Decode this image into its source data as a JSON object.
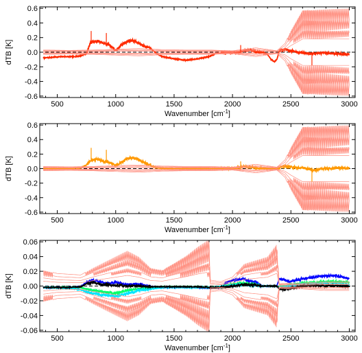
{
  "chart_data": [
    {
      "type": "line",
      "xlabel": "Wavenumber [cm",
      "xlabel_sup": "-1",
      "xlabel_end": "]",
      "ylabel": "dTB [K]",
      "xlim": [
        350,
        3050
      ],
      "ylim": [
        -0.62,
        0.62
      ],
      "xticks": [
        500,
        1000,
        1500,
        2000,
        2500,
        3000
      ],
      "yticks": [
        -0.6,
        -0.4,
        -0.2,
        0.0,
        0.2,
        0.4,
        0.6
      ],
      "ytick_labels": [
        "-0.6",
        "-0.4",
        "-0.2",
        "0.0",
        "0.2",
        "0.4",
        "0.6"
      ],
      "zero_line": true,
      "series": [
        {
          "color": "#ff2a00",
          "role": "difference",
          "x": [
            380,
            450,
            550,
            650,
            700,
            750,
            780,
            800,
            850,
            900,
            950,
            1000,
            1050,
            1100,
            1150,
            1200,
            1250,
            1300,
            1350,
            1400,
            1500,
            1600,
            1700,
            1800,
            1850,
            1900,
            2000,
            2050,
            2100,
            2150,
            2200,
            2250,
            2300,
            2330,
            2360,
            2380,
            2400,
            2450,
            2500,
            2600,
            2700,
            2800,
            2900,
            3000
          ],
          "y": [
            -0.08,
            -0.07,
            -0.06,
            -0.06,
            -0.05,
            -0.02,
            0.12,
            0.14,
            0.15,
            0.12,
            0.1,
            0.02,
            0.1,
            0.15,
            0.16,
            0.12,
            0.08,
            0.05,
            -0.02,
            -0.06,
            -0.09,
            -0.11,
            -0.09,
            -0.06,
            -0.02,
            -0.01,
            -0.01,
            0.0,
            0.02,
            0.03,
            0.01,
            0.0,
            -0.03,
            -0.1,
            -0.13,
            -0.1,
            0.02,
            0.04,
            0.02,
            -0.01,
            -0.02,
            -0.01,
            -0.02,
            -0.03
          ]
        },
        {
          "color": "#ff8f80",
          "role": "uncertainty-envelope",
          "x": [
            380,
            600,
            800,
            1000,
            1200,
            1400,
            1600,
            1800,
            2000,
            2200,
            2380,
            2450,
            2500,
            2550,
            2600,
            2700,
            2800,
            2900,
            3000
          ],
          "y": [
            0.03,
            0.025,
            0.03,
            0.04,
            0.05,
            0.035,
            0.03,
            0.03,
            0.02,
            0.06,
            0.02,
            0.12,
            0.3,
            0.45,
            0.6,
            0.6,
            0.6,
            0.6,
            0.6
          ]
        }
      ]
    },
    {
      "type": "line",
      "xlabel": "Wavenumber [cm",
      "xlabel_sup": "-1",
      "xlabel_end": "]",
      "ylabel": "dTB [K]",
      "xlim": [
        350,
        3050
      ],
      "ylim": [
        -0.62,
        0.62
      ],
      "xticks": [
        500,
        1000,
        1500,
        2000,
        2500,
        3000
      ],
      "yticks": [
        -0.6,
        -0.4,
        -0.2,
        0.0,
        0.2,
        0.4,
        0.6
      ],
      "ytick_labels": [
        "-0.6",
        "-0.4",
        "-0.2",
        "0.0",
        "0.2",
        "0.4",
        "0.6"
      ],
      "zero_line": true,
      "series": [
        {
          "color": "#ff9900",
          "role": "difference",
          "x": [
            380,
            500,
            600,
            700,
            750,
            780,
            800,
            850,
            900,
            950,
            1000,
            1050,
            1100,
            1150,
            1200,
            1250,
            1300,
            1350,
            1500,
            1700,
            1800,
            1850,
            1950,
            2050,
            2100,
            2150,
            2200,
            2300,
            2380,
            2420,
            2450,
            2500,
            2600,
            2700,
            2800,
            2900,
            3000
          ],
          "y": [
            0.0,
            0.0,
            0.0,
            0.01,
            0.05,
            0.1,
            0.12,
            0.13,
            0.1,
            0.09,
            0.04,
            0.09,
            0.14,
            0.15,
            0.12,
            0.08,
            0.04,
            0.01,
            0.0,
            0.0,
            0.0,
            0.0,
            0.0,
            0.01,
            0.03,
            0.02,
            0.01,
            0.0,
            0.0,
            0.02,
            0.03,
            0.02,
            0.01,
            -0.02,
            0.0,
            0.01,
            0.0
          ]
        },
        {
          "color": "#ff8f80",
          "role": "uncertainty-envelope",
          "x": [
            380,
            600,
            800,
            1000,
            1200,
            1400,
            1600,
            1800,
            2000,
            2200,
            2380,
            2450,
            2500,
            2550,
            2600,
            2700,
            2800,
            2900,
            3000
          ],
          "y": [
            0.03,
            0.025,
            0.03,
            0.04,
            0.05,
            0.035,
            0.03,
            0.03,
            0.02,
            0.06,
            0.02,
            0.12,
            0.3,
            0.45,
            0.6,
            0.6,
            0.6,
            0.6,
            0.6
          ]
        }
      ]
    },
    {
      "type": "line",
      "xlabel": "Wavenumber [cm",
      "xlabel_sup": "-1",
      "xlabel_end": "]",
      "ylabel": "dTB [K]",
      "xlim": [
        350,
        3050
      ],
      "ylim": [
        -0.062,
        0.062
      ],
      "xticks": [
        500,
        1000,
        1500,
        2000,
        2500,
        3000
      ],
      "yticks": [
        -0.06,
        -0.04,
        -0.02,
        0.0,
        0.02,
        0.04,
        0.06
      ],
      "ytick_labels": [
        "-0.06",
        "-0.04",
        "-0.02",
        "0.00",
        "0.02",
        "0.04",
        "0.06"
      ],
      "zero_line": true,
      "series": [
        {
          "color": "#0000ff",
          "role": "difference",
          "x": [
            380,
            600,
            700,
            750,
            800,
            900,
            1000,
            1100,
            1200,
            1300,
            1400,
            1500,
            1700,
            1800,
            1850,
            1900,
            1950,
            2000,
            2100,
            2150,
            2200,
            2250,
            2380,
            2400,
            2450,
            2500,
            2600,
            2700,
            2800,
            2900,
            3000
          ],
          "y": [
            -0.002,
            -0.002,
            -0.001,
            0.005,
            0.008,
            0.004,
            0.005,
            0.002,
            0.003,
            -0.001,
            -0.002,
            -0.002,
            -0.002,
            -0.003,
            -0.002,
            -0.002,
            0.005,
            0.008,
            0.01,
            0.006,
            0.006,
            0.0,
            0.0,
            0.01,
            0.008,
            0.006,
            0.01,
            0.012,
            0.014,
            0.014,
            0.01
          ]
        },
        {
          "color": "#00ff66",
          "role": "difference",
          "x": [
            380,
            600,
            700,
            750,
            800,
            900,
            1000,
            1100,
            1200,
            1300,
            1400,
            1700,
            1800,
            1900,
            2000,
            2100,
            2200,
            2250,
            2380,
            2400,
            2500,
            2600,
            2700,
            2800,
            2900,
            3000
          ],
          "y": [
            -0.002,
            -0.002,
            -0.002,
            -0.004,
            -0.006,
            -0.008,
            -0.01,
            -0.006,
            -0.004,
            -0.002,
            -0.001,
            -0.001,
            -0.002,
            -0.001,
            0.003,
            0.004,
            0.002,
            0.0,
            0.0,
            -0.002,
            0.002,
            0.004,
            0.005,
            0.006,
            0.006,
            0.005
          ]
        },
        {
          "color": "#00e5ff",
          "role": "difference",
          "x": [
            380,
            600,
            700,
            750,
            800,
            900,
            1000,
            1050,
            1100,
            1200,
            1300,
            1400,
            1700,
            1800,
            1900,
            2000,
            2100,
            2200,
            2250,
            2380,
            2400,
            2500,
            2600,
            2700,
            2800,
            2900,
            3000
          ],
          "y": [
            -0.002,
            -0.003,
            -0.005,
            -0.008,
            -0.01,
            -0.012,
            -0.014,
            -0.012,
            -0.01,
            -0.006,
            -0.004,
            -0.002,
            -0.002,
            -0.002,
            -0.001,
            0.001,
            0.002,
            0.001,
            0.0,
            0.0,
            -0.003,
            0.0,
            0.002,
            0.003,
            0.003,
            0.002,
            0.002
          ]
        },
        {
          "color": "#000000",
          "role": "difference",
          "x": [
            380,
            600,
            700,
            750,
            800,
            900,
            1000,
            1100,
            1200,
            1300,
            1400,
            1700,
            1800,
            1900,
            2000,
            2100,
            2200,
            2250,
            2380,
            2400,
            2450,
            2500,
            2600,
            2700,
            2800,
            2900,
            3000
          ],
          "y": [
            -0.002,
            -0.002,
            -0.001,
            0.003,
            0.005,
            0.002,
            0.001,
            0.0,
            0.0,
            -0.001,
            -0.001,
            -0.001,
            -0.002,
            -0.002,
            0.0,
            0.002,
            0.001,
            0.0,
            0.0,
            -0.004,
            -0.005,
            -0.003,
            0.0,
            0.001,
            0.0,
            0.0,
            0.0
          ]
        },
        {
          "color": "#ff8f80",
          "role": "uncertainty-envelope",
          "x": [
            380,
            500,
            700,
            800,
            900,
            1000,
            1100,
            1200,
            1300,
            1400,
            1500,
            1600,
            1700,
            1800,
            1810,
            1900,
            2000,
            2100,
            2200,
            2300,
            2380,
            2400,
            2500,
            2600,
            2700,
            2800,
            2900,
            3000
          ],
          "y": [
            0.022,
            0.017,
            0.015,
            0.024,
            0.032,
            0.04,
            0.048,
            0.04,
            0.025,
            0.022,
            0.032,
            0.042,
            0.054,
            0.064,
            0.008,
            0.006,
            0.012,
            0.03,
            0.035,
            0.04,
            0.058,
            0.003,
            0.004,
            0.004,
            0.005,
            0.006,
            0.006,
            0.006
          ]
        }
      ]
    }
  ]
}
